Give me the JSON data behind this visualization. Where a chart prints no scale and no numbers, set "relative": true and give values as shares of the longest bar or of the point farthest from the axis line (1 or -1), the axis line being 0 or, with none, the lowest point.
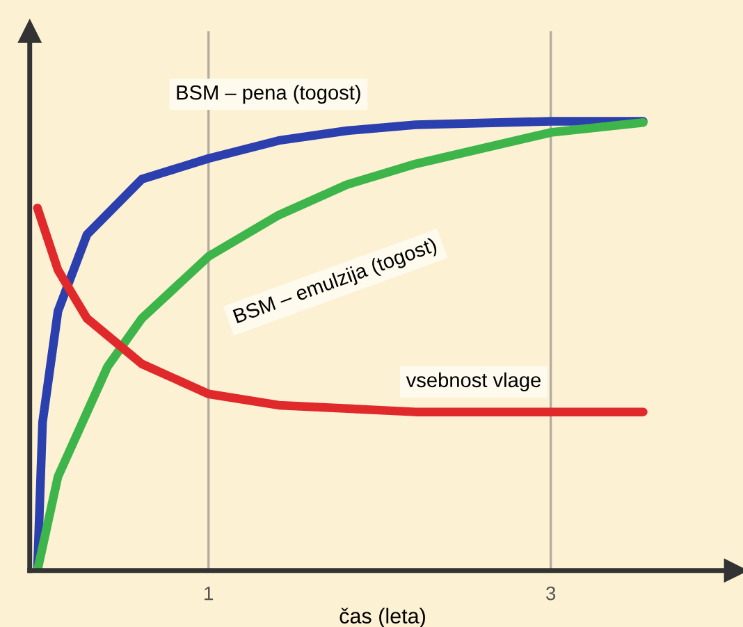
{
  "chart_data": {
    "type": "line",
    "relative": true,
    "xlabel": "čas (leta)",
    "xlim": [
      -0.045,
      4.08
    ],
    "xticks": [
      1,
      3
    ],
    "grid": "x",
    "legend": false,
    "marker": "none",
    "line_style": "solid",
    "series": [
      {
        "name": "BSM – pena (togost)",
        "color": "#2b3fae",
        "x": [
          0,
          0.03,
          0.12,
          0.29,
          0.61,
          1.0,
          1.41,
          1.81,
          2.21,
          3.0,
          3.54
        ],
        "values": [
          0,
          0.33,
          0.577,
          0.748,
          0.871,
          0.917,
          0.957,
          0.979,
          0.992,
          1.0,
          1.0
        ]
      },
      {
        "name": "BSM – emulzija (togost)",
        "color": "#3db54a",
        "x": [
          0,
          0.12,
          0.41,
          0.61,
          1.0,
          1.41,
          1.81,
          2.21,
          3.0,
          3.54
        ],
        "values": [
          0,
          0.209,
          0.454,
          0.561,
          0.699,
          0.791,
          0.859,
          0.905,
          0.975,
          0.997
        ]
      },
      {
        "name": "vsebnost vlage",
        "color": "#e0292b",
        "x": [
          0,
          0.12,
          0.29,
          0.61,
          1.0,
          1.41,
          2.21,
          3.0,
          3.54
        ],
        "values": [
          0.807,
          0.669,
          0.561,
          0.46,
          0.393,
          0.368,
          0.353,
          0.353,
          0.353
        ]
      }
    ]
  }
}
